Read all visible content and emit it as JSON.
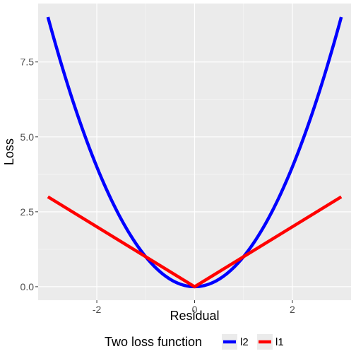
{
  "chart_data": {
    "type": "line",
    "xlabel": "Residual",
    "ylabel": "Loss",
    "xlim": [
      -3.2,
      3.2
    ],
    "ylim": [
      -0.45,
      9.45
    ],
    "x_ticks": [
      -2,
      0,
      2
    ],
    "x_tick_labels": [
      "-2",
      "0",
      "2"
    ],
    "y_ticks": [
      0,
      2.5,
      5,
      7.5
    ],
    "y_tick_labels": [
      "0.0",
      "2.5",
      "5.0",
      "7.5"
    ],
    "grid": true,
    "legend": {
      "title": "Two loss function",
      "position": "bottom",
      "entries": [
        {
          "name": "l2",
          "color": "#0000FF"
        },
        {
          "name": "l1",
          "color": "#FF0000"
        }
      ]
    },
    "series": [
      {
        "name": "l2",
        "color": "#0000FF",
        "x": [
          -3,
          -2.5,
          -2,
          -1.5,
          -1,
          -0.5,
          0,
          0.5,
          1,
          1.5,
          2,
          2.5,
          3
        ],
        "y": [
          9,
          6.25,
          4,
          2.25,
          1,
          0.25,
          0,
          0.25,
          1,
          2.25,
          4,
          6.25,
          9
        ]
      },
      {
        "name": "l1",
        "color": "#FF0000",
        "x": [
          -3,
          0,
          3
        ],
        "y": [
          3,
          0,
          3
        ]
      }
    ]
  },
  "colors": {
    "panel_background": "#EBEBEB",
    "grid_major": "#FFFFFF",
    "grid_minor": "#F5F5F5"
  }
}
